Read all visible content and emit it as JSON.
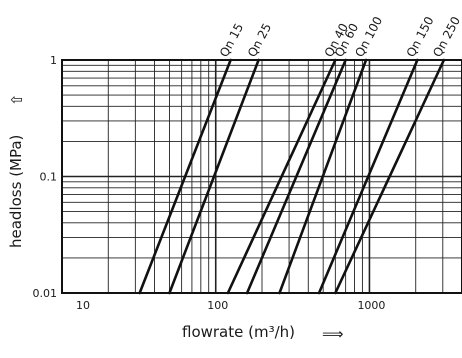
{
  "chart_data": {
    "type": "line",
    "x_scale": "log",
    "y_scale": "log",
    "xlim": [
      10,
      4000
    ],
    "ylim": [
      0.01,
      1
    ],
    "grid": true,
    "xlabel": "flowrate (m³/h)",
    "ylabel": "headloss (MPa)",
    "x_ticks": [
      {
        "value": 10,
        "label": "10"
      },
      {
        "value": 100,
        "label": "100"
      },
      {
        "value": 1000,
        "label": "1000"
      }
    ],
    "y_ticks": [
      {
        "value": 0.01,
        "label": "0.01"
      },
      {
        "value": 0.1,
        "label": "0.1"
      },
      {
        "value": 1,
        "label": "1"
      }
    ],
    "series": [
      {
        "name": "Qn 15",
        "points": [
          {
            "x": 32,
            "y": 0.01
          },
          {
            "x": 125,
            "y": 1
          }
        ]
      },
      {
        "name": "Qn 25",
        "points": [
          {
            "x": 50,
            "y": 0.01
          },
          {
            "x": 190,
            "y": 1
          }
        ]
      },
      {
        "name": "Qn 40",
        "points": [
          {
            "x": 120,
            "y": 0.01
          },
          {
            "x": 600,
            "y": 1
          }
        ]
      },
      {
        "name": "Qn 60",
        "points": [
          {
            "x": 160,
            "y": 0.01
          },
          {
            "x": 700,
            "y": 1
          }
        ]
      },
      {
        "name": "Qn 100",
        "points": [
          {
            "x": 260,
            "y": 0.01
          },
          {
            "x": 950,
            "y": 1
          }
        ]
      },
      {
        "name": "Qn 150",
        "points": [
          {
            "x": 470,
            "y": 0.01
          },
          {
            "x": 2050,
            "y": 1
          }
        ]
      },
      {
        "name": "Qn 250",
        "points": [
          {
            "x": 600,
            "y": 0.01
          },
          {
            "x": 3050,
            "y": 1
          }
        ]
      }
    ]
  },
  "decor": {
    "x_arrow": "⟹",
    "y_arrow": "⇧"
  }
}
